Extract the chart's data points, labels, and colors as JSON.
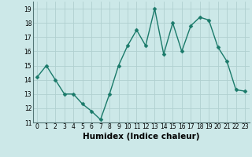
{
  "x": [
    0,
    1,
    2,
    3,
    4,
    5,
    6,
    7,
    8,
    9,
    10,
    11,
    12,
    13,
    14,
    15,
    16,
    17,
    18,
    19,
    20,
    21,
    22,
    23
  ],
  "y": [
    14.2,
    15.0,
    14.0,
    13.0,
    13.0,
    12.3,
    11.8,
    11.2,
    13.0,
    15.0,
    16.4,
    17.5,
    16.4,
    19.0,
    15.8,
    18.0,
    16.0,
    17.8,
    18.4,
    18.2,
    16.3,
    15.3,
    13.3,
    13.2
  ],
  "line_color": "#1a7a6a",
  "marker_color": "#1a7a6a",
  "bg_color": "#cce8e8",
  "grid_color": "#b0d0d0",
  "xlabel": "Humidex (Indice chaleur)",
  "xlim": [
    -0.5,
    23.5
  ],
  "ylim": [
    11,
    19.5
  ],
  "yticks": [
    11,
    12,
    13,
    14,
    15,
    16,
    17,
    18,
    19
  ],
  "xticks": [
    0,
    1,
    2,
    3,
    4,
    5,
    6,
    7,
    8,
    9,
    10,
    11,
    12,
    13,
    14,
    15,
    16,
    17,
    18,
    19,
    20,
    21,
    22,
    23
  ],
  "tick_fontsize": 5.5,
  "xlabel_fontsize": 7.5,
  "marker_size": 2.5,
  "line_width": 1.0
}
